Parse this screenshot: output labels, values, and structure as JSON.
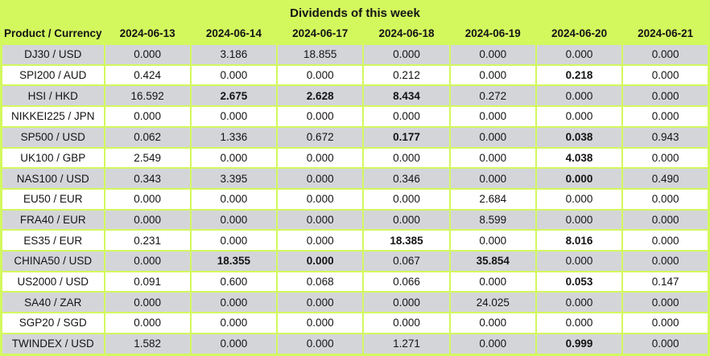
{
  "title": "Dividends of this week",
  "table": {
    "product_header": "Product / Currency",
    "date_headers": [
      "2024-06-13",
      "2024-06-14",
      "2024-06-17",
      "2024-06-18",
      "2024-06-19",
      "2024-06-20",
      "2024-06-21"
    ],
    "rows": [
      {
        "product": "DJ30 / USD",
        "values": [
          "0.000",
          "3.186",
          "18.855",
          "0.000",
          "0.000",
          "0.000",
          "0.000"
        ],
        "bold_cols": []
      },
      {
        "product": "SPI200 / AUD",
        "values": [
          "0.424",
          "0.000",
          "0.000",
          "0.212",
          "0.000",
          "0.218",
          "0.000"
        ],
        "bold_cols": [
          5
        ]
      },
      {
        "product": "HSI / HKD",
        "values": [
          "16.592",
          "2.675",
          "2.628",
          "8.434",
          "0.272",
          "0.000",
          "0.000"
        ],
        "bold_cols": [
          1,
          2,
          3
        ]
      },
      {
        "product": "NIKKEI225 / JPN",
        "values": [
          "0.000",
          "0.000",
          "0.000",
          "0.000",
          "0.000",
          "0.000",
          "0.000"
        ],
        "bold_cols": []
      },
      {
        "product": "SP500 / USD",
        "values": [
          "0.062",
          "1.336",
          "0.672",
          "0.177",
          "0.000",
          "0.038",
          "0.943"
        ],
        "bold_cols": [
          3,
          5
        ]
      },
      {
        "product": "UK100 / GBP",
        "values": [
          "2.549",
          "0.000",
          "0.000",
          "0.000",
          "0.000",
          "4.038",
          "0.000"
        ],
        "bold_cols": [
          5
        ]
      },
      {
        "product": "NAS100 / USD",
        "values": [
          "0.343",
          "3.395",
          "0.000",
          "0.346",
          "0.000",
          "0.000",
          "0.490"
        ],
        "bold_cols": [
          5
        ]
      },
      {
        "product": "EU50 / EUR",
        "values": [
          "0.000",
          "0.000",
          "0.000",
          "0.000",
          "2.684",
          "0.000",
          "0.000"
        ],
        "bold_cols": []
      },
      {
        "product": "FRA40 / EUR",
        "values": [
          "0.000",
          "0.000",
          "0.000",
          "0.000",
          "8.599",
          "0.000",
          "0.000"
        ],
        "bold_cols": []
      },
      {
        "product": "ES35 / EUR",
        "values": [
          "0.231",
          "0.000",
          "0.000",
          "18.385",
          "0.000",
          "8.016",
          "0.000"
        ],
        "bold_cols": [
          3,
          5
        ]
      },
      {
        "product": "CHINA50 / USD",
        "values": [
          "0.000",
          "18.355",
          "0.000",
          "0.067",
          "35.854",
          "0.000",
          "0.000"
        ],
        "bold_cols": [
          1,
          2,
          4
        ]
      },
      {
        "product": "US2000 / USD",
        "values": [
          "0.091",
          "0.600",
          "0.068",
          "0.066",
          "0.000",
          "0.053",
          "0.147"
        ],
        "bold_cols": [
          5
        ]
      },
      {
        "product": "SA40 / ZAR",
        "values": [
          "0.000",
          "0.000",
          "0.000",
          "0.000",
          "24.025",
          "0.000",
          "0.000"
        ],
        "bold_cols": []
      },
      {
        "product": "SGP20 / SGD",
        "values": [
          "0.000",
          "0.000",
          "0.000",
          "0.000",
          "0.000",
          "0.000",
          "0.000"
        ],
        "bold_cols": []
      },
      {
        "product": "TWINDEX / USD",
        "values": [
          "1.582",
          "0.000",
          "0.000",
          "1.271",
          "0.000",
          "0.999",
          "0.000"
        ],
        "bold_cols": [
          5
        ]
      }
    ]
  },
  "colors": {
    "accent_green": "#d3f85e",
    "row_gray": "#d4d5d9",
    "row_white": "#ffffff",
    "text": "#141414"
  },
  "chart_data": {
    "type": "table",
    "title": "Dividends of this week",
    "columns": [
      "Product / Currency",
      "2024-06-13",
      "2024-06-14",
      "2024-06-17",
      "2024-06-18",
      "2024-06-19",
      "2024-06-20",
      "2024-06-21"
    ],
    "rows": [
      [
        "DJ30 / USD",
        0.0,
        3.186,
        18.855,
        0.0,
        0.0,
        0.0,
        0.0
      ],
      [
        "SPI200 / AUD",
        0.424,
        0.0,
        0.0,
        0.212,
        0.0,
        0.218,
        0.0
      ],
      [
        "HSI / HKD",
        16.592,
        2.675,
        2.628,
        8.434,
        0.272,
        0.0,
        0.0
      ],
      [
        "NIKKEI225 / JPN",
        0.0,
        0.0,
        0.0,
        0.0,
        0.0,
        0.0,
        0.0
      ],
      [
        "SP500 / USD",
        0.062,
        1.336,
        0.672,
        0.177,
        0.0,
        0.038,
        0.943
      ],
      [
        "UK100 / GBP",
        2.549,
        0.0,
        0.0,
        0.0,
        0.0,
        4.038,
        0.0
      ],
      [
        "NAS100 / USD",
        0.343,
        3.395,
        0.0,
        0.346,
        0.0,
        0.0,
        0.49
      ],
      [
        "EU50 / EUR",
        0.0,
        0.0,
        0.0,
        0.0,
        2.684,
        0.0,
        0.0
      ],
      [
        "FRA40 / EUR",
        0.0,
        0.0,
        0.0,
        0.0,
        8.599,
        0.0,
        0.0
      ],
      [
        "ES35 / EUR",
        0.231,
        0.0,
        0.0,
        18.385,
        0.0,
        8.016,
        0.0
      ],
      [
        "CHINA50 / USD",
        0.0,
        18.355,
        0.0,
        0.067,
        35.854,
        0.0,
        0.0
      ],
      [
        "US2000 / USD",
        0.091,
        0.6,
        0.068,
        0.066,
        0.0,
        0.053,
        0.147
      ],
      [
        "SA40 / ZAR",
        0.0,
        0.0,
        0.0,
        0.0,
        24.025,
        0.0,
        0.0
      ],
      [
        "SGP20 / SGD",
        0.0,
        0.0,
        0.0,
        0.0,
        0.0,
        0.0,
        0.0
      ],
      [
        "TWINDEX / USD",
        1.582,
        0.0,
        0.0,
        1.271,
        0.0,
        0.999,
        0.0
      ]
    ]
  }
}
